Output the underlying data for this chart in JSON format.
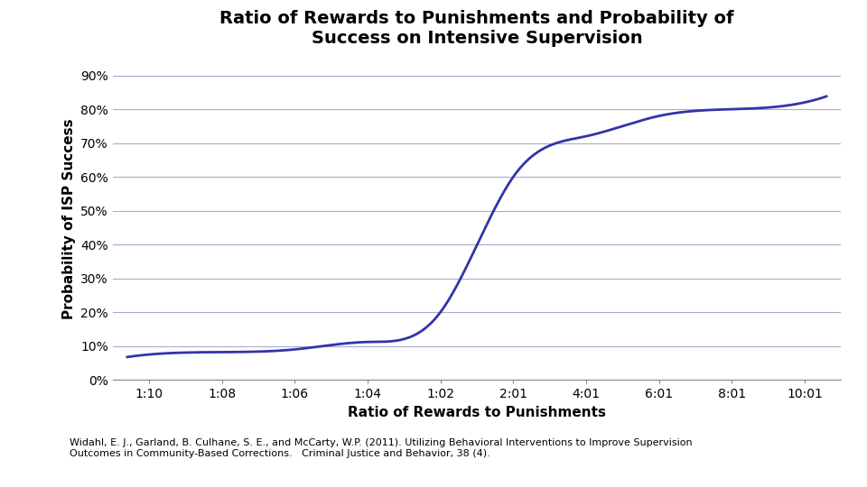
{
  "title": "Ratio of Rewards to Punishments and Probability of\nSuccess on Intensive Supervision",
  "xlabel": "Ratio of Rewards to Punishments",
  "ylabel": "Probability of ISP Success",
  "x_tick_labels": [
    "1:10",
    "1:08",
    "1:06",
    "1:04",
    "1:02",
    "2:01",
    "4:01",
    "6:01",
    "8:01",
    "10:01"
  ],
  "x_tick_positions": [
    0,
    1,
    2,
    3,
    4,
    5,
    6,
    7,
    8,
    9
  ],
  "y_ticks": [
    0.0,
    0.1,
    0.2,
    0.3,
    0.4,
    0.5,
    0.6,
    0.7,
    0.8,
    0.9
  ],
  "y_tick_labels": [
    "0%",
    "10%",
    "20%",
    "30%",
    "40%",
    "50%",
    "60%",
    "70%",
    "80%",
    "90%"
  ],
  "key_points_x": [
    0,
    1,
    2,
    3,
    4,
    5,
    6,
    7,
    8,
    9
  ],
  "key_points_y": [
    0.075,
    0.082,
    0.09,
    0.112,
    0.2,
    0.6,
    0.72,
    0.78,
    0.8,
    0.82
  ],
  "line_color": "#3333aa",
  "line_width": 2.0,
  "background_color": "#ffffff",
  "grid_color": "#aaaacc",
  "citation": "Widahl, E. J., Garland, B. Culhane, S. E., and McCarty, W.P. (2011). Utilizing Behavioral Interventions to Improve Supervision\nOutcomes in Community-Based Corrections.   Criminal Justice and Behavior, 38 (4).",
  "title_fontsize": 14,
  "axis_label_fontsize": 11,
  "tick_fontsize": 10,
  "citation_fontsize": 8
}
